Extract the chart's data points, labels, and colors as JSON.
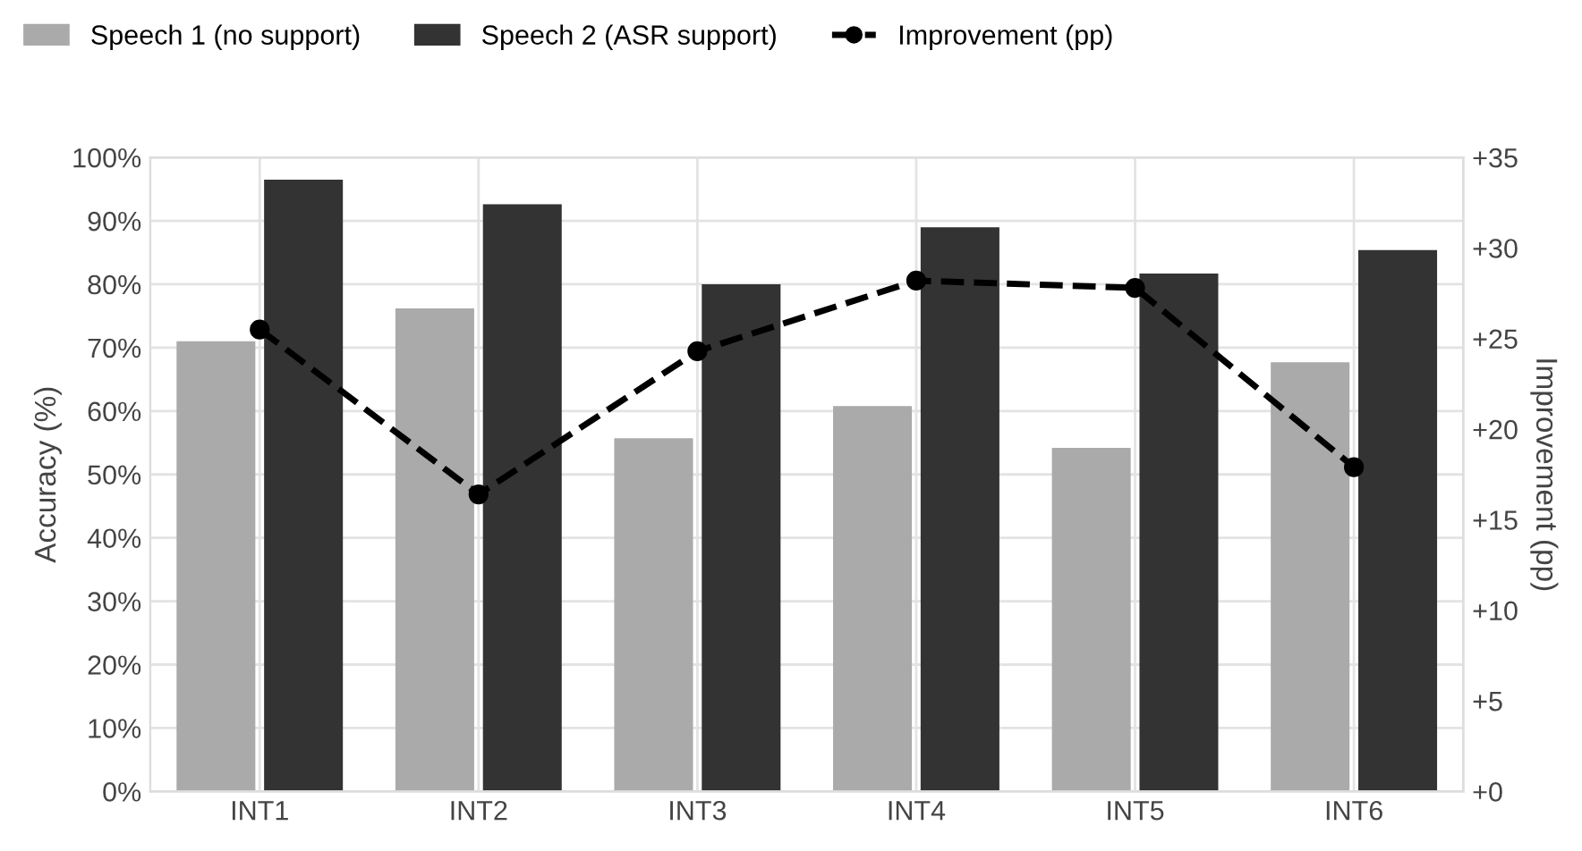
{
  "chart_data": {
    "type": "bar",
    "categories": [
      "INT1",
      "INT2",
      "INT3",
      "INT4",
      "INT5",
      "INT6"
    ],
    "series": [
      {
        "name": "Speech 1 (no support)",
        "color": "#aaaaaa",
        "values": [
          71.0,
          76.2,
          55.7,
          60.8,
          54.2,
          67.7
        ]
      },
      {
        "name": "Speech 2 (ASR support)",
        "color": "#333333",
        "values": [
          96.5,
          92.6,
          80.0,
          89.0,
          81.7,
          85.4
        ]
      },
      {
        "name": "Improvement (pp)",
        "type": "line",
        "axis": "y2",
        "color": "#000000",
        "marker": "circle",
        "line_style": "dashed",
        "values": [
          25.5,
          16.4,
          24.3,
          28.2,
          27.8,
          17.9
        ]
      }
    ],
    "ylabel": "Accuracy (%)",
    "y2label": "Improvement (pp)",
    "ylim": [
      0,
      100
    ],
    "yticks": [
      {
        "value": 0,
        "label": "0%"
      },
      {
        "value": 10,
        "label": "10%"
      },
      {
        "value": 20,
        "label": "20%"
      },
      {
        "value": 30,
        "label": "30%"
      },
      {
        "value": 40,
        "label": "40%"
      },
      {
        "value": 50,
        "label": "50%"
      },
      {
        "value": 60,
        "label": "60%"
      },
      {
        "value": 70,
        "label": "70%"
      },
      {
        "value": 80,
        "label": "80%"
      },
      {
        "value": 90,
        "label": "90%"
      },
      {
        "value": 100,
        "label": "100%"
      }
    ],
    "y2lim": [
      0,
      35
    ],
    "y2ticks": [
      {
        "value": 0,
        "label": "+0"
      },
      {
        "value": 5,
        "label": "+5"
      },
      {
        "value": 10,
        "label": "+10"
      },
      {
        "value": 15,
        "label": "+15"
      },
      {
        "value": 20,
        "label": "+20"
      },
      {
        "value": 25,
        "label": "+25"
      },
      {
        "value": 30,
        "label": "+30"
      },
      {
        "value": 35,
        "label": "+35"
      }
    ],
    "grid": true,
    "legend": "top left"
  }
}
